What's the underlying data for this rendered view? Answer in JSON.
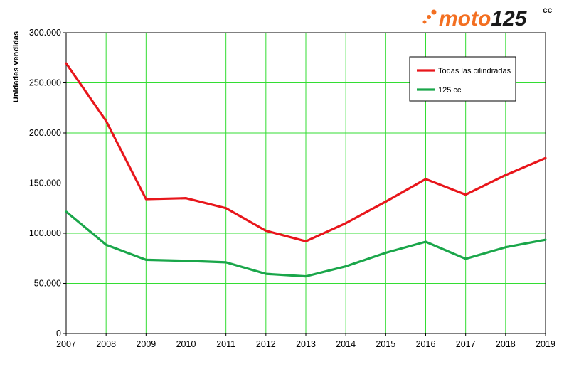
{
  "logo": {
    "text_moto": "moto",
    "text_num": "125",
    "text_cc": "cc",
    "color_orange": "#f36f21",
    "color_dark": "#1a1a1a"
  },
  "chart_data": {
    "type": "line",
    "ylabel": "Unidades vendidas",
    "xlabel": "",
    "x": [
      "2007",
      "2008",
      "2009",
      "2010",
      "2011",
      "2012",
      "2013",
      "2014",
      "2015",
      "2016",
      "2017",
      "2018",
      "2019"
    ],
    "ylim": [
      0,
      300000
    ],
    "yticks": [
      0,
      50000,
      100000,
      150000,
      200000,
      250000,
      300000
    ],
    "ytick_labels": [
      "0",
      "50.000",
      "100.000",
      "150.000",
      "200.000",
      "250.000",
      "300.000"
    ],
    "grid": true,
    "grid_color": "#33dd33",
    "legend_position": "top-right",
    "series": [
      {
        "name": "Todas las cilindradas",
        "color": "#e8161b",
        "values": [
          269500,
          212000,
          134000,
          135000,
          125000,
          102500,
          92000,
          110000,
          131500,
          154000,
          138500,
          158000,
          175000
        ]
      },
      {
        "name": "125 cc",
        "color": "#1aa64a",
        "values": [
          121500,
          88500,
          73500,
          72500,
          71000,
          59500,
          57000,
          67000,
          80500,
          91500,
          74500,
          86000,
          93500
        ]
      }
    ]
  }
}
